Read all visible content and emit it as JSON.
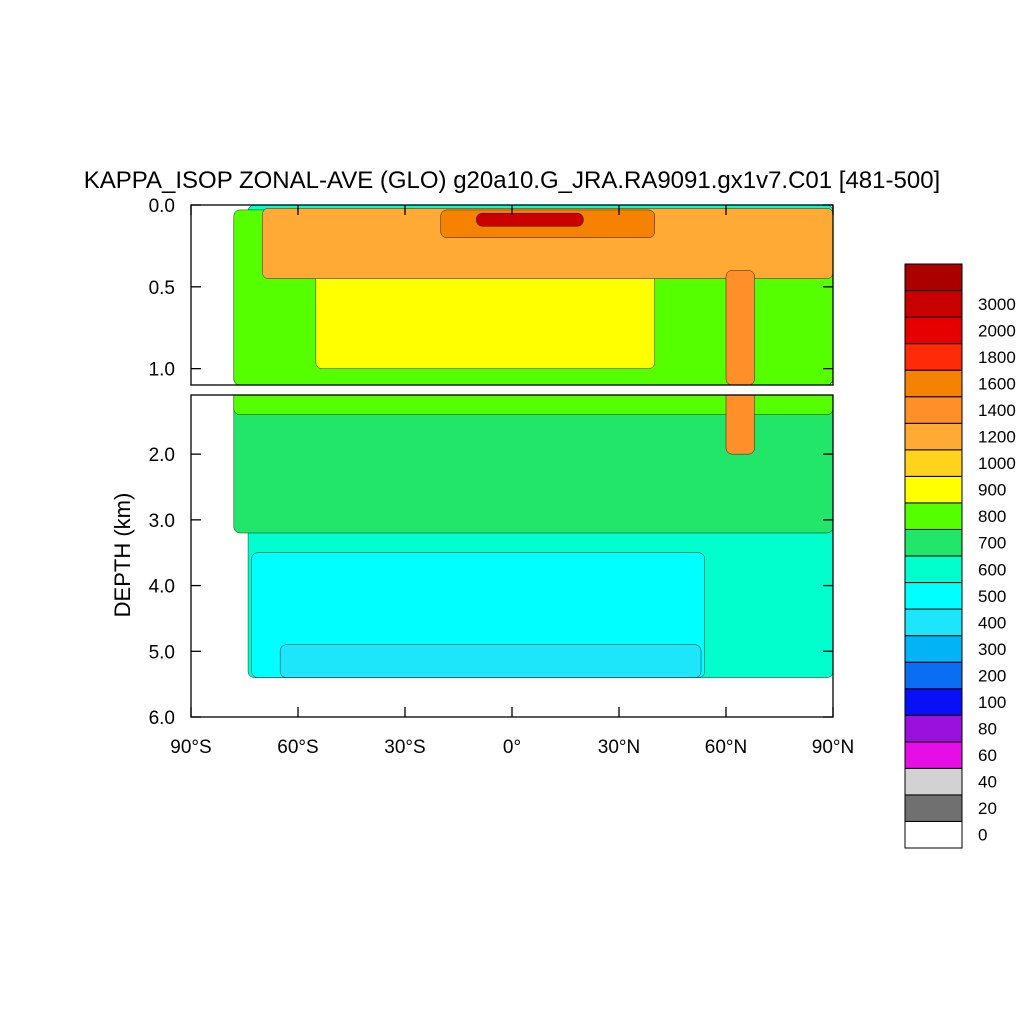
{
  "chart_data": {
    "type": "heatmap",
    "title": "KAPPA_ISOP ZONAL-AVE (GLO) g20a10.G_JRA.RA9091.gx1v7.C01 [481-500]",
    "xlabel": "",
    "ylabel": "DEPTH (km)",
    "x_ticks": [
      "90°S",
      "60°S",
      "30°S",
      "0°",
      "30°N",
      "60°N",
      "90°N"
    ],
    "x_tick_values": [
      -90,
      -60,
      -30,
      0,
      30,
      60,
      90
    ],
    "upper_panel": {
      "ylim": [
        0.0,
        1.1
      ],
      "y_ticks": [
        "0.0",
        "0.5",
        "1.0"
      ],
      "y_tick_values": [
        0.0,
        0.5,
        1.0
      ]
    },
    "lower_panel": {
      "ylim": [
        1.1,
        6.0
      ],
      "y_ticks": [
        "2.0",
        "3.0",
        "4.0",
        "5.0",
        "6.0"
      ],
      "y_tick_values": [
        2.0,
        3.0,
        4.0,
        5.0,
        6.0
      ]
    },
    "colorbar_levels": [
      "0",
      "20",
      "40",
      "60",
      "80",
      "100",
      "200",
      "300",
      "400",
      "500",
      "600",
      "700",
      "800",
      "900",
      "1000",
      "1200",
      "1400",
      "1600",
      "1800",
      "2000",
      "3000"
    ],
    "colorbar_colors": [
      "#ffffff",
      "#707070",
      "#d2d2d2",
      "#e60ee6",
      "#9a10dc",
      "#0a10f5",
      "#0a6ef5",
      "#00b4f5",
      "#1ee6fa",
      "#00ffff",
      "#00ffcc",
      "#22e66a",
      "#55ff00",
      "#ffff00",
      "#ffd21e",
      "#ffaa35",
      "#ff8f28",
      "#f58200",
      "#ff2a08",
      "#e60000",
      "#c80000",
      "#aa0000"
    ],
    "field_regions": [
      {
        "level": "500-600",
        "lat_range": [
          -74,
          90
        ],
        "depth_range": [
          0.0,
          5.4
        ]
      },
      {
        "level": "600-700",
        "lat_range": [
          -78,
          90
        ],
        "depth_range": [
          0.05,
          3.2
        ]
      },
      {
        "level": "700-800",
        "lat_range": [
          -78,
          90
        ],
        "depth_range": [
          0.03,
          1.4
        ]
      },
      {
        "level": "800-900",
        "lat_range": [
          -55,
          40
        ],
        "depth_range": [
          0.1,
          1.0
        ]
      },
      {
        "level": "1000-1200",
        "lat_range": [
          -70,
          90
        ],
        "depth_range": [
          0.02,
          0.45
        ]
      },
      {
        "level": "1400-1600",
        "lat_range": [
          -20,
          40
        ],
        "depth_range": [
          0.03,
          0.2
        ]
      },
      {
        "level": "2000-3000",
        "lat_range": [
          -10,
          20
        ],
        "depth_range": [
          0.05,
          0.13
        ]
      },
      {
        "level": "1200-1400",
        "lat_range": [
          60,
          68
        ],
        "depth_range": [
          0.4,
          2.0
        ]
      },
      {
        "level": "400-500",
        "lat_range": [
          -73,
          54
        ],
        "depth_range": [
          3.5,
          5.4
        ]
      },
      {
        "level": "300-400",
        "lat_range": [
          -65,
          53
        ],
        "depth_range": [
          4.9,
          5.4
        ]
      }
    ]
  }
}
